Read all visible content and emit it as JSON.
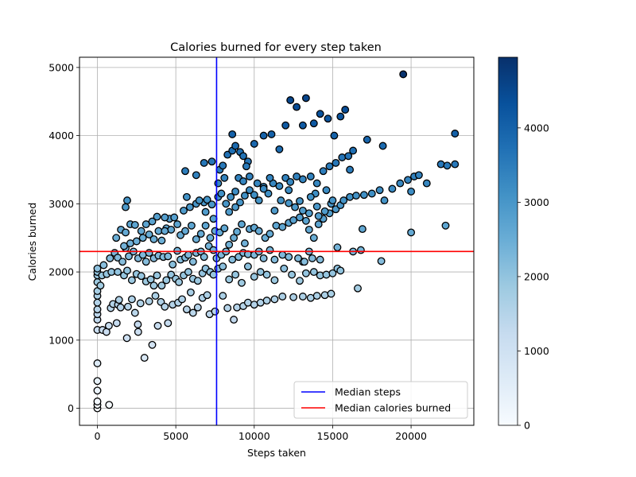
{
  "chart_data": {
    "type": "scatter",
    "title": "Calories burned for every step taken",
    "xlabel": "Steps taken",
    "ylabel": "Calories burned",
    "xlim": [
      -1140,
      24000
    ],
    "ylim": [
      -250,
      5150
    ],
    "xticks": [
      0,
      5000,
      10000,
      15000,
      20000
    ],
    "yticks": [
      0,
      1000,
      2000,
      3000,
      4000,
      5000
    ],
    "grid": true,
    "colorbar": {
      "min": 0,
      "max": 4950,
      "ticks": [
        0,
        1000,
        2000,
        3000,
        4000
      ],
      "colormap": "Blues"
    },
    "reference_lines": [
      {
        "name": "Median steps",
        "orientation": "vertical",
        "value": 7600,
        "color": "#0000ff"
      },
      {
        "name": "Median calories burned",
        "orientation": "horizontal",
        "value": 2300,
        "color": "#ff0000"
      }
    ],
    "legend": {
      "position": "bottom-right",
      "entries": [
        "Median steps",
        "Median calories burned"
      ]
    },
    "points": [
      [
        0,
        0
      ],
      [
        0,
        50
      ],
      [
        0,
        100
      ],
      [
        0,
        260
      ],
      [
        0,
        400
      ],
      [
        0,
        660
      ],
      [
        0,
        1150
      ],
      [
        0,
        1300
      ],
      [
        0,
        1380
      ],
      [
        0,
        1450
      ],
      [
        0,
        1550
      ],
      [
        0,
        1650
      ],
      [
        0,
        1720
      ],
      [
        0,
        1850
      ],
      [
        0,
        1950
      ],
      [
        0,
        2000
      ],
      [
        0,
        2050
      ],
      [
        330,
        1150
      ],
      [
        580,
        1120
      ],
      [
        750,
        50
      ],
      [
        730,
        1210
      ],
      [
        850,
        1470
      ],
      [
        1000,
        1530
      ],
      [
        1230,
        1250
      ],
      [
        1320,
        1520
      ],
      [
        1380,
        1590
      ],
      [
        1480,
        1480
      ],
      [
        1880,
        1030
      ],
      [
        1950,
        1490
      ],
      [
        2200,
        1600
      ],
      [
        2400,
        1400
      ],
      [
        2600,
        1120
      ],
      [
        2580,
        1230
      ],
      [
        2750,
        1540
      ],
      [
        3000,
        740
      ],
      [
        3300,
        1570
      ],
      [
        3500,
        930
      ],
      [
        3700,
        1650
      ],
      [
        3850,
        1210
      ],
      [
        4050,
        1560
      ],
      [
        4300,
        1490
      ],
      [
        4500,
        1250
      ],
      [
        4800,
        1520
      ],
      [
        5150,
        1550
      ],
      [
        5400,
        1600
      ],
      [
        5700,
        1450
      ],
      [
        5950,
        1700
      ],
      [
        6100,
        1400
      ],
      [
        6400,
        1480
      ],
      [
        6700,
        1620
      ],
      [
        7000,
        1660
      ],
      [
        7150,
        1380
      ],
      [
        7500,
        1420
      ],
      [
        8000,
        1650
      ],
      [
        8300,
        1470
      ],
      [
        8700,
        1300
      ],
      [
        8900,
        1480
      ],
      [
        9300,
        1500
      ],
      [
        9600,
        1550
      ],
      [
        10000,
        1520
      ],
      [
        10400,
        1550
      ],
      [
        10800,
        1580
      ],
      [
        11300,
        1600
      ],
      [
        11800,
        1640
      ],
      [
        12500,
        1630
      ],
      [
        13100,
        1640
      ],
      [
        13600,
        1620
      ],
      [
        14000,
        1650
      ],
      [
        14500,
        1660
      ],
      [
        14900,
        1680
      ],
      [
        16600,
        1760
      ],
      [
        200,
        1800
      ],
      [
        300,
        1950
      ],
      [
        600,
        1970
      ],
      [
        900,
        2000
      ],
      [
        1300,
        2000
      ],
      [
        1700,
        1950
      ],
      [
        1900,
        2020
      ],
      [
        2200,
        1880
      ],
      [
        2500,
        1970
      ],
      [
        2800,
        1940
      ],
      [
        3100,
        1860
      ],
      [
        3400,
        1890
      ],
      [
        3600,
        1800
      ],
      [
        3800,
        1950
      ],
      [
        4100,
        1800
      ],
      [
        4400,
        1880
      ],
      [
        4700,
        1960
      ],
      [
        5000,
        1900
      ],
      [
        5200,
        1850
      ],
      [
        5500,
        1950
      ],
      [
        5800,
        2000
      ],
      [
        6100,
        1900
      ],
      [
        6400,
        1870
      ],
      [
        6700,
        1980
      ],
      [
        6900,
        2050
      ],
      [
        7200,
        2000
      ],
      [
        7400,
        1960
      ],
      [
        7700,
        2050
      ],
      [
        8000,
        2080
      ],
      [
        8400,
        1890
      ],
      [
        8800,
        1960
      ],
      [
        9200,
        1840
      ],
      [
        9600,
        2080
      ],
      [
        10000,
        1930
      ],
      [
        10400,
        2000
      ],
      [
        10800,
        1960
      ],
      [
        11300,
        1880
      ],
      [
        11900,
        2050
      ],
      [
        12400,
        1960
      ],
      [
        12900,
        1870
      ],
      [
        13300,
        1980
      ],
      [
        13800,
        2000
      ],
      [
        14200,
        1950
      ],
      [
        14600,
        1960
      ],
      [
        15000,
        1980
      ],
      [
        15300,
        2050
      ],
      [
        15500,
        2020
      ],
      [
        14200,
        2180
      ],
      [
        13700,
        2200
      ],
      [
        13100,
        2150
      ],
      [
        400,
        2100
      ],
      [
        800,
        2200
      ],
      [
        1100,
        2280
      ],
      [
        1300,
        2210
      ],
      [
        1600,
        2150
      ],
      [
        1800,
        2350
      ],
      [
        2000,
        2230
      ],
      [
        2300,
        2300
      ],
      [
        2600,
        2200
      ],
      [
        2900,
        2250
      ],
      [
        3100,
        2150
      ],
      [
        3300,
        2280
      ],
      [
        3600,
        2200
      ],
      [
        3900,
        2240
      ],
      [
        4200,
        2220
      ],
      [
        4500,
        2230
      ],
      [
        4800,
        2110
      ],
      [
        5100,
        2310
      ],
      [
        5300,
        2180
      ],
      [
        5600,
        2210
      ],
      [
        5800,
        2250
      ],
      [
        6100,
        2150
      ],
      [
        6300,
        2280
      ],
      [
        6600,
        2300
      ],
      [
        6800,
        2220
      ],
      [
        7100,
        2380
      ],
      [
        7400,
        2320
      ],
      [
        7600,
        2200
      ],
      [
        7900,
        2250
      ],
      [
        8200,
        2300
      ],
      [
        8600,
        2180
      ],
      [
        9000,
        2220
      ],
      [
        9300,
        2280
      ],
      [
        9600,
        2260
      ],
      [
        10000,
        2250
      ],
      [
        10300,
        2300
      ],
      [
        10600,
        2200
      ],
      [
        11000,
        2320
      ],
      [
        11300,
        2180
      ],
      [
        11800,
        2250
      ],
      [
        12200,
        2220
      ],
      [
        12800,
        2200
      ],
      [
        13200,
        2150
      ],
      [
        13500,
        2300
      ],
      [
        16300,
        2300
      ],
      [
        16800,
        2320
      ],
      [
        18100,
        2160
      ],
      [
        1700,
        2380
      ],
      [
        2100,
        2420
      ],
      [
        2500,
        2450
      ],
      [
        2900,
        2500
      ],
      [
        3300,
        2550
      ],
      [
        3600,
        2480
      ],
      [
        3900,
        2600
      ],
      [
        4100,
        2460
      ],
      [
        4400,
        2640
      ],
      [
        4700,
        2620
      ],
      [
        5100,
        2700
      ],
      [
        5300,
        2540
      ],
      [
        5600,
        2600
      ],
      [
        6000,
        2680
      ],
      [
        6300,
        2480
      ],
      [
        6600,
        2560
      ],
      [
        6900,
        2680
      ],
      [
        7200,
        2500
      ],
      [
        7500,
        2600
      ],
      [
        7800,
        2580
      ],
      [
        8100,
        2640
      ],
      [
        8400,
        2400
      ],
      [
        8700,
        2500
      ],
      [
        8900,
        2590
      ],
      [
        9200,
        2700
      ],
      [
        9400,
        2420
      ],
      [
        9700,
        2630
      ],
      [
        10000,
        2650
      ],
      [
        10300,
        2600
      ],
      [
        10700,
        2500
      ],
      [
        11000,
        2560
      ],
      [
        11400,
        2680
      ],
      [
        11800,
        2660
      ],
      [
        12200,
        2720
      ],
      [
        12500,
        2760
      ],
      [
        12900,
        2800
      ],
      [
        13300,
        2750
      ],
      [
        13500,
        2620
      ],
      [
        13800,
        2500
      ],
      [
        14100,
        2700
      ],
      [
        14400,
        2780
      ],
      [
        14800,
        2860
      ],
      [
        15200,
        2920
      ],
      [
        15500,
        2980
      ],
      [
        15700,
        3050
      ],
      [
        16100,
        3100
      ],
      [
        16500,
        3120
      ],
      [
        17000,
        3130
      ],
      [
        17500,
        3150
      ],
      [
        18000,
        3200
      ],
      [
        18300,
        3050
      ],
      [
        18800,
        3220
      ],
      [
        19300,
        3300
      ],
      [
        19800,
        3350
      ],
      [
        20000,
        3180
      ],
      [
        20200,
        3400
      ],
      [
        20500,
        3420
      ],
      [
        21000,
        3300
      ],
      [
        21900,
        3580
      ],
      [
        22300,
        3560
      ],
      [
        22800,
        3580
      ],
      [
        20000,
        2580
      ],
      [
        22200,
        2680
      ],
      [
        16900,
        2630
      ],
      [
        15300,
        2360
      ],
      [
        1200,
        2500
      ],
      [
        1500,
        2620
      ],
      [
        1800,
        2580
      ],
      [
        2100,
        2700
      ],
      [
        2400,
        2690
      ],
      [
        2800,
        2600
      ],
      [
        3100,
        2700
      ],
      [
        3500,
        2740
      ],
      [
        3800,
        2810
      ],
      [
        4300,
        2600
      ],
      [
        4600,
        2780
      ],
      [
        4900,
        2800
      ],
      [
        5500,
        2900
      ],
      [
        5900,
        2950
      ],
      [
        6300,
        3000
      ],
      [
        6800,
        3020
      ],
      [
        7000,
        3060
      ],
      [
        7300,
        2990
      ],
      [
        7700,
        3100
      ],
      [
        7900,
        3150
      ],
      [
        8200,
        3000
      ],
      [
        8500,
        3100
      ],
      [
        8800,
        3180
      ],
      [
        9100,
        3020
      ],
      [
        9400,
        3120
      ],
      [
        9700,
        3200
      ],
      [
        10000,
        3130
      ],
      [
        10300,
        3050
      ],
      [
        10600,
        3250
      ],
      [
        10900,
        3150
      ],
      [
        11200,
        3300
      ],
      [
        11600,
        3260
      ],
      [
        12000,
        3380
      ],
      [
        12300,
        3320
      ],
      [
        12700,
        3400
      ],
      [
        13100,
        3360
      ],
      [
        13600,
        3400
      ],
      [
        14000,
        3300
      ],
      [
        14400,
        3480
      ],
      [
        14800,
        3550
      ],
      [
        15200,
        3600
      ],
      [
        15600,
        3680
      ],
      [
        16000,
        3700
      ],
      [
        16300,
        3780
      ],
      [
        17200,
        3940
      ],
      [
        18200,
        3850
      ],
      [
        19500,
        4900
      ],
      [
        22800,
        4030
      ],
      [
        5600,
        3480
      ],
      [
        6300,
        3420
      ],
      [
        6800,
        3600
      ],
      [
        7300,
        3620
      ],
      [
        7800,
        3500
      ],
      [
        8000,
        3560
      ],
      [
        8300,
        3720
      ],
      [
        8600,
        3780
      ],
      [
        8800,
        3850
      ],
      [
        9100,
        3760
      ],
      [
        9300,
        3700
      ],
      [
        9600,
        3620
      ],
      [
        10000,
        3880
      ],
      [
        10600,
        4000
      ],
      [
        11100,
        4020
      ],
      [
        11600,
        3800
      ],
      [
        12000,
        4150
      ],
      [
        12300,
        4520
      ],
      [
        12700,
        4420
      ],
      [
        13100,
        4150
      ],
      [
        13300,
        4550
      ],
      [
        13800,
        4180
      ],
      [
        14200,
        4320
      ],
      [
        14700,
        4250
      ],
      [
        15100,
        4000
      ],
      [
        15500,
        4280
      ],
      [
        15800,
        4380
      ],
      [
        16100,
        3500
      ],
      [
        8600,
        4020
      ],
      [
        9000,
        3380
      ],
      [
        9500,
        3550
      ],
      [
        11700,
        3050
      ],
      [
        12200,
        3200
      ],
      [
        12600,
        2950
      ],
      [
        13100,
        2900
      ],
      [
        13500,
        2860
      ],
      [
        14000,
        2960
      ],
      [
        14500,
        2890
      ],
      [
        14900,
        3000
      ],
      [
        13900,
        3150
      ],
      [
        1900,
        3050
      ],
      [
        1800,
        2950
      ],
      [
        4300,
        2800
      ],
      [
        5700,
        3100
      ],
      [
        6500,
        3050
      ],
      [
        6900,
        2880
      ],
      [
        7400,
        2780
      ],
      [
        7700,
        3300
      ],
      [
        8100,
        3380
      ],
      [
        8400,
        2880
      ],
      [
        8800,
        2950
      ],
      [
        9300,
        3330
      ],
      [
        9700,
        3400
      ],
      [
        10200,
        3300
      ],
      [
        10600,
        3220
      ],
      [
        11000,
        3380
      ],
      [
        11300,
        2900
      ],
      [
        12200,
        3010
      ],
      [
        12900,
        3040
      ],
      [
        13600,
        3100
      ],
      [
        14100,
        2820
      ],
      [
        14600,
        3200
      ],
      [
        15000,
        3050
      ]
    ]
  }
}
